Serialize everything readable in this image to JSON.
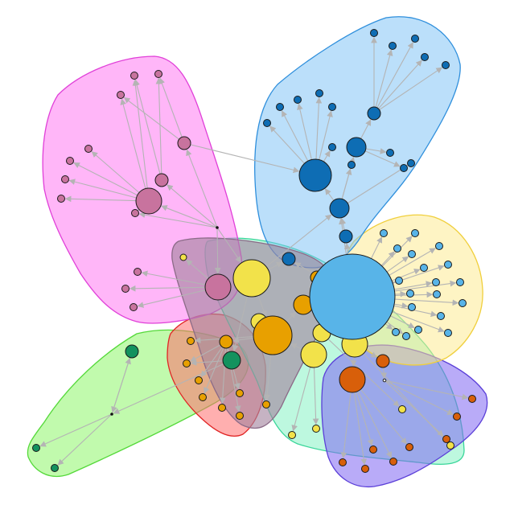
{
  "diagram": {
    "type": "network-graph",
    "arrow_color": "#b4b4b4",
    "node_stroke": "#1a1a1a",
    "groups": [
      {
        "id": "pink",
        "fill": "#ff6ef2",
        "stroke": "#e040d8",
        "node_color": "#c8739e"
      },
      {
        "id": "blue",
        "fill": "#78bff5",
        "stroke": "#2f8fdc",
        "node_color": "#0e6db4"
      },
      {
        "id": "yellow",
        "fill": "#fde98a",
        "stroke": "#f0cf3c",
        "node_color": "#58b4e8"
      },
      {
        "id": "green",
        "fill": "#8ef56a",
        "stroke": "#55d93a",
        "node_color": "#13925e"
      },
      {
        "id": "red",
        "fill": "#ff6e6e",
        "stroke": "#e02424",
        "node_color": "#e8a000"
      },
      {
        "id": "teal",
        "fill": "#7cf2c0",
        "stroke": "#3ad69a",
        "node_color": "#f2e24a"
      },
      {
        "id": "purple",
        "fill": "#7f66f2",
        "stroke": "#5b3fd8",
        "node_color": "#d85f0a"
      },
      {
        "id": "mauve",
        "fill": "#a3849e",
        "stroke": "#8c6b88",
        "node_color": "#f2e24a"
      }
    ],
    "node_count": 118
  }
}
